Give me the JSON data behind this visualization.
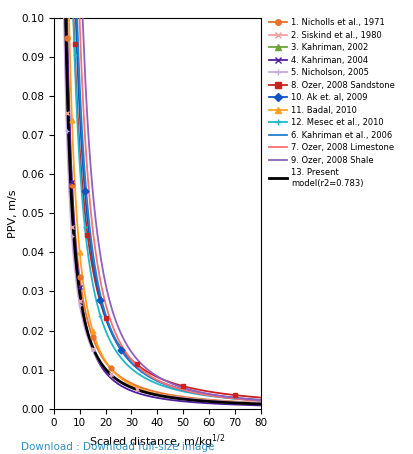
{
  "title": "",
  "xlabel": "Scaled distance, m/kg$^{1/2}$",
  "ylabel": "PPV, m/s",
  "xlim": [
    0,
    80
  ],
  "ylim": [
    0,
    0.1
  ],
  "download_text": "Download : Download full-size image",
  "curves": [
    {
      "label": "1. Nicholls et al., 1971",
      "color": "#E8732A",
      "marker": "o",
      "K": 1.06,
      "n": 1.499,
      "mxpos": [
        2,
        3,
        4,
        5,
        7,
        10,
        15,
        22
      ]
    },
    {
      "label": "2. Siskind et al., 1980",
      "color": "#F4A0A0",
      "marker": "x",
      "K": 0.78,
      "n": 1.45,
      "mxpos": [
        2,
        3,
        5,
        7,
        10,
        15,
        22,
        32
      ]
    },
    {
      "label": "3. Kahriman, 2002",
      "color": "#6BA53A",
      "marker": "^",
      "K": 80.0,
      "n": 1.38,
      "mxpos": [
        10,
        15,
        20,
        28,
        38,
        52,
        70,
        80
      ]
    },
    {
      "label": "4. Kahriman, 2004",
      "color": "#5020A0",
      "marker": "x",
      "K": 1.75,
      "n": 1.75,
      "mxpos": [
        2,
        3,
        4,
        5,
        7,
        10
      ]
    },
    {
      "label": "5. Nicholson, 2005",
      "color": "#C8A8E0",
      "marker": "+",
      "K": 0.7,
      "n": 1.42,
      "mxpos": [
        2,
        3,
        5,
        7,
        10,
        15,
        22
      ]
    },
    {
      "label": "8. Ozer, 2008 Sandstone",
      "color": "#CC2020",
      "marker": "s",
      "K": 2.2,
      "n": 1.52,
      "mxpos": [
        3,
        5,
        8,
        13,
        20,
        32,
        50,
        70
      ]
    },
    {
      "label": "10. Ak et. al, 2009",
      "color": "#1055C0",
      "marker": "D",
      "K": 3.8,
      "n": 1.7,
      "mxpos": [
        3,
        5,
        8,
        12,
        18,
        26
      ]
    },
    {
      "label": "11. Badal, 2010",
      "color": "#FFA020",
      "marker": "^",
      "K": 2.1,
      "n": 1.72,
      "mxpos": [
        2,
        3,
        5,
        7,
        10,
        15
      ]
    },
    {
      "label": "12. Mesec et al., 2010",
      "color": "#20B8C8",
      "marker": "+",
      "K": 2.8,
      "n": 1.65,
      "mxpos": [
        2,
        3,
        5,
        8,
        12,
        18
      ]
    },
    {
      "label": "6. Kahriman et al., 2006",
      "color": "#2080D0",
      "marker": null,
      "K": 5.0,
      "n": 1.78,
      "mxpos": []
    },
    {
      "label": "7. Ozer, 2008 Limestone",
      "color": "#FF7070",
      "marker": null,
      "K": 7.5,
      "n": 1.88,
      "mxpos": []
    },
    {
      "label": "9. Ozer, 2008 Shale",
      "color": "#9060C0",
      "marker": null,
      "K": 11.0,
      "n": 1.95,
      "mxpos": []
    },
    {
      "label": "13. Present\nmodel(r2=0.783)",
      "color": "#000000",
      "marker": null,
      "K": 1.05,
      "n": 1.55,
      "mxpos": []
    }
  ]
}
